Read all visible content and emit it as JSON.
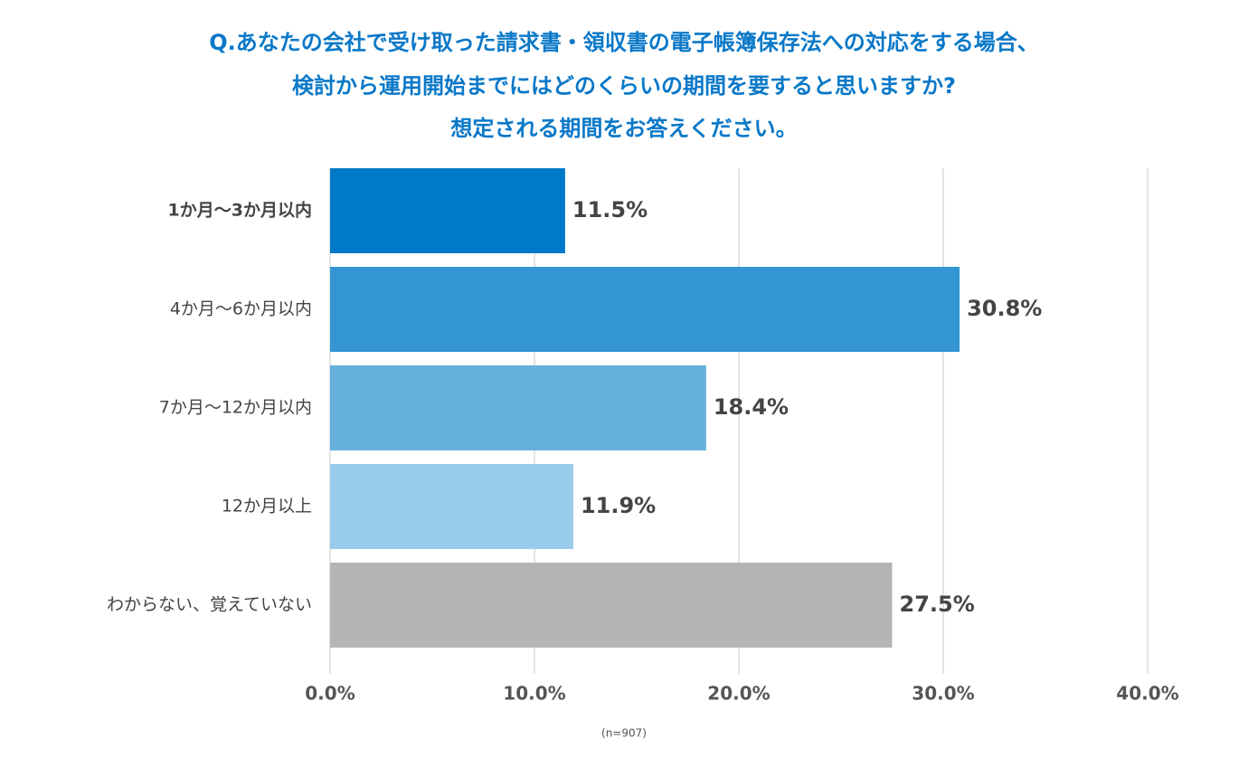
{
  "chart_data": {
    "type": "bar",
    "orientation": "horizontal",
    "title": [
      "Q.あなたの会社で受け取った請求書・領収書の電子帳簿保存法への対応をする場合、",
      "検討から運用開始までにはどのくらいの期間を要すると思いますか?",
      "想定される期間をお答えください。"
    ],
    "categories": [
      "1か月〜3か月以内",
      "4か月〜6か月以内",
      "7か月〜12か月以内",
      "12か月以上",
      "わからない、覚えていない"
    ],
    "values": [
      11.5,
      30.8,
      18.4,
      11.9,
      27.5
    ],
    "value_labels": [
      "11.5%",
      "30.8%",
      "18.4%",
      "11.9%",
      "27.5%"
    ],
    "colors": [
      "#0079c8",
      "#3396d3",
      "#66b0de",
      "#99cbea",
      "#b5b5b5"
    ],
    "xlim": [
      0,
      40
    ],
    "xticks": [
      {
        "value": 0,
        "label": "0.0%"
      },
      {
        "value": 10,
        "label": "10.0%"
      },
      {
        "value": 20,
        "label": "20.0%"
      },
      {
        "value": 30,
        "label": "30.0%"
      },
      {
        "value": 40,
        "label": "40.0%"
      }
    ],
    "grid": true,
    "note": "(n=907)"
  }
}
